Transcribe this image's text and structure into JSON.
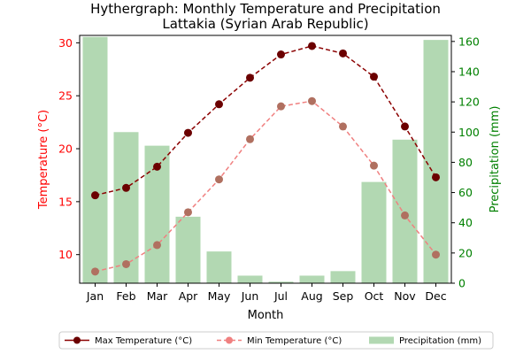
{
  "chart_data": {
    "type": "bar+line",
    "title_line1": "Hythergraph: Monthly Temperature and Precipitation",
    "title_line2": "Lattakia (Syrian Arab Republic)",
    "xlabel": "Month",
    "ylabel_left": "Temperature (°C)",
    "ylabel_right": "Precipitation (mm)",
    "categories": [
      "Jan",
      "Feb",
      "Mar",
      "Apr",
      "May",
      "Jun",
      "Jul",
      "Aug",
      "Sep",
      "Oct",
      "Nov",
      "Dec"
    ],
    "left_axis": {
      "range": [
        7.3,
        30.7
      ],
      "ticks": [
        10,
        15,
        20,
        25,
        30
      ]
    },
    "right_axis": {
      "range": [
        0,
        164
      ],
      "ticks": [
        0,
        20,
        40,
        60,
        80,
        100,
        120,
        140,
        160
      ]
    },
    "series": [
      {
        "name": "Max Temperature (°C)",
        "kind": "line",
        "axis": "left",
        "color": "#8b0000",
        "values": [
          15.6,
          16.3,
          18.3,
          21.5,
          24.2,
          26.7,
          28.9,
          29.7,
          29.0,
          26.8,
          22.1,
          17.3
        ]
      },
      {
        "name": "Min Temperature (°C)",
        "kind": "line",
        "axis": "left",
        "color": "#f08080",
        "values": [
          8.4,
          9.1,
          10.9,
          14.0,
          17.1,
          20.9,
          24.0,
          24.5,
          22.1,
          18.4,
          13.7,
          10.0
        ]
      },
      {
        "name": "Precipitation (mm)",
        "kind": "bar",
        "axis": "right",
        "color": "#b2d8b2",
        "values": [
          163,
          100,
          91,
          44,
          21,
          5,
          1,
          5,
          8,
          67,
          95,
          161
        ]
      }
    ],
    "legend_position": "bottom",
    "grid": false,
    "colors": {
      "left_axis_text": "#ff0000",
      "right_axis_text": "#008000"
    }
  }
}
